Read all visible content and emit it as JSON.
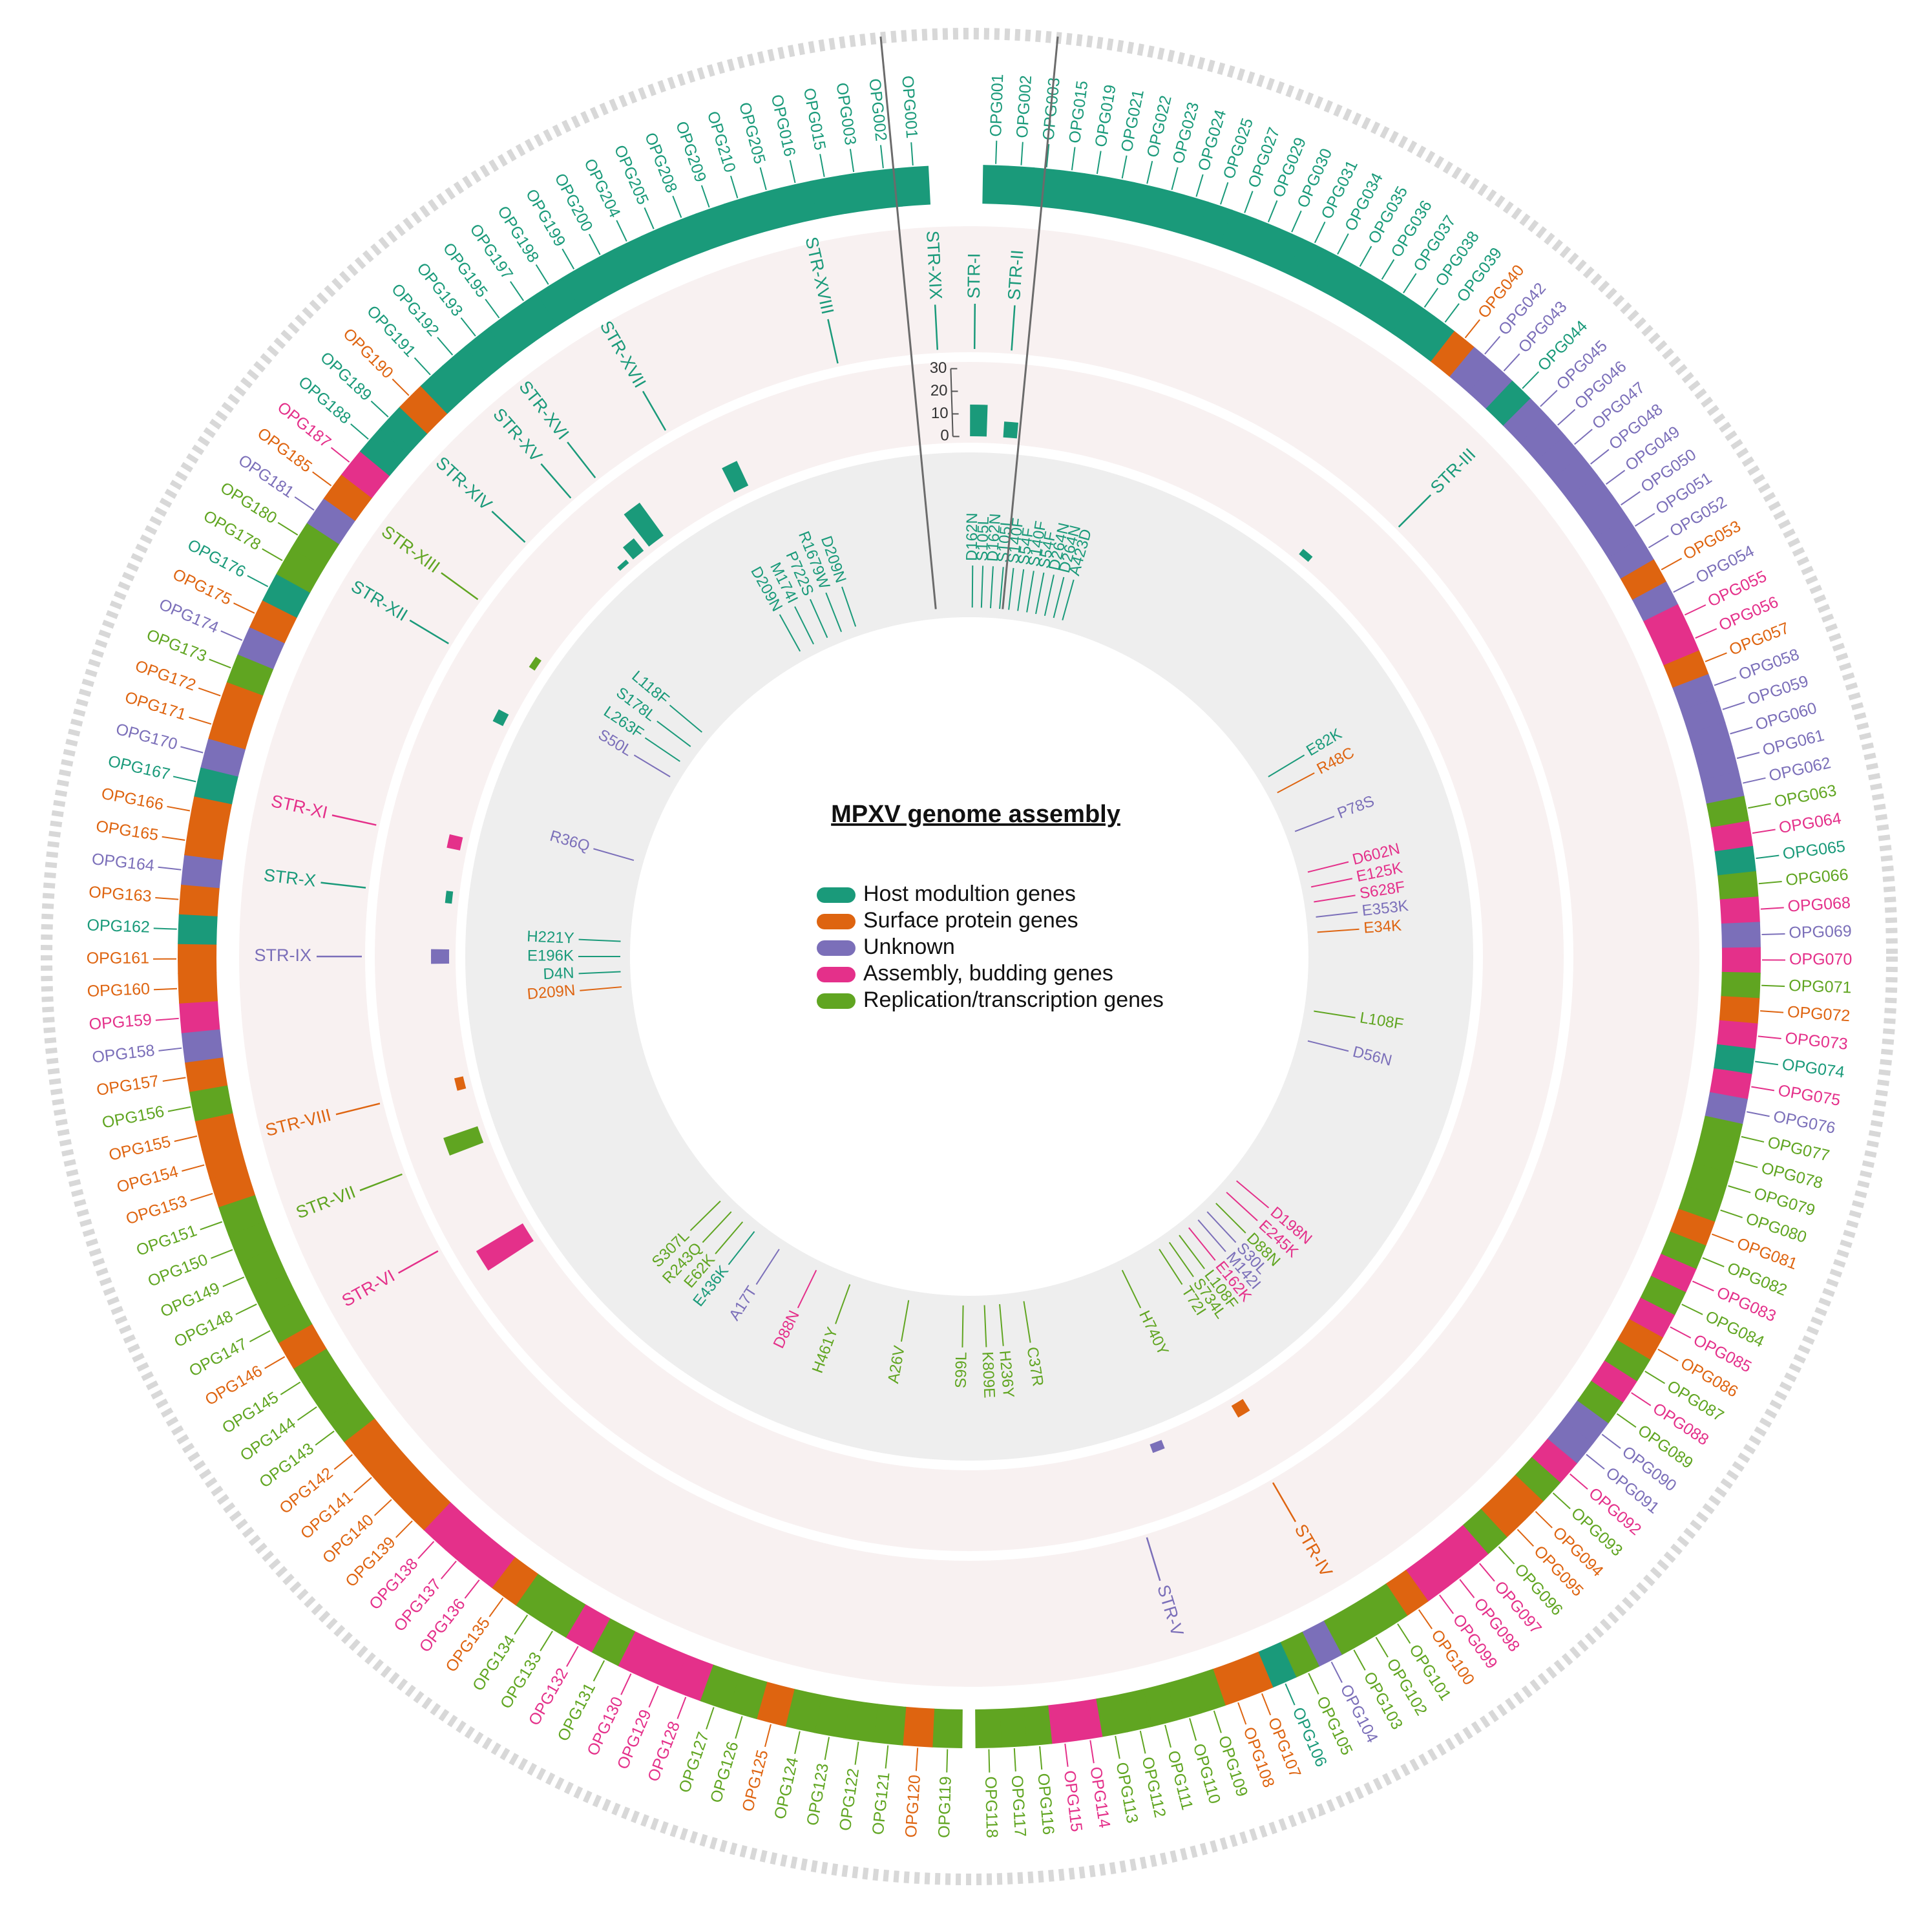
{
  "title": "MPXV genome assembly",
  "palette": {
    "host": "#1a9a7a",
    "surface": "#de6410",
    "unknown": "#7b6fb9",
    "assembly": "#e4308a",
    "replication": "#60a521",
    "ring_grey": "#eeeeee",
    "ring_pink": "#f8f1f1",
    "outer_ticks": "#d8d8d8",
    "divider": "#6b6b6b"
  },
  "legend": [
    {
      "key": "host",
      "label": "Host modultion genes"
    },
    {
      "key": "surface",
      "label": "Surface protein genes"
    },
    {
      "key": "unknown",
      "label": "Unknown"
    },
    {
      "key": "assembly",
      "label": "Assembly, budding genes"
    },
    {
      "key": "replication",
      "label": "Replication/transcription genes"
    }
  ],
  "bar_axis": {
    "ticks": [
      0,
      10,
      20,
      30
    ],
    "max": 30
  },
  "strs": [
    {
      "label": "STR-I",
      "pos": 0.5,
      "cat": "host"
    },
    {
      "label": "STR-II",
      "pos": 4.0,
      "cat": "host"
    },
    {
      "label": "STR-III",
      "pos": 45.0,
      "cat": "host"
    },
    {
      "label": "STR-IV",
      "pos": 150.0,
      "cat": "surface"
    },
    {
      "label": "STR-V",
      "pos": 163.0,
      "cat": "unknown"
    },
    {
      "label": "STR-VI",
      "pos": 241.0,
      "cat": "assembly"
    },
    {
      "label": "STR-VII",
      "pos": 249.0,
      "cat": "replication"
    },
    {
      "label": "STR-VIII",
      "pos": 256.0,
      "cat": "surface"
    },
    {
      "label": "STR-IX",
      "pos": 270.0,
      "cat": "unknown"
    },
    {
      "label": "STR-X",
      "pos": 276.5,
      "cat": "host"
    },
    {
      "label": "STR-XI",
      "pos": 282.5,
      "cat": "assembly"
    },
    {
      "label": "STR-XII",
      "pos": 301.0,
      "cat": "host"
    },
    {
      "label": "STR-XIII",
      "pos": 306.0,
      "cat": "replication"
    },
    {
      "label": "STR-XIV",
      "pos": 313.0,
      "cat": "host"
    },
    {
      "label": "STR-XV",
      "pos": 319.0,
      "cat": "host"
    },
    {
      "label": "STR-XVI",
      "pos": 322.0,
      "cat": "host"
    },
    {
      "label": "STR-XVII",
      "pos": 330.0,
      "cat": "host"
    },
    {
      "label": "STR-XVIII",
      "pos": 347.5,
      "cat": "host"
    },
    {
      "label": "STR-XIX",
      "pos": 357.0,
      "cat": "host"
    }
  ],
  "bars": [
    {
      "pos": 1.0,
      "value": 14,
      "cat": "host"
    },
    {
      "pos": 4.5,
      "value": 7,
      "cat": "host"
    },
    {
      "pos": 40.0,
      "value": 3,
      "cat": "host"
    },
    {
      "pos": 149.0,
      "value": 6,
      "cat": "surface"
    },
    {
      "pos": 159.0,
      "value": 4,
      "cat": "unknown"
    },
    {
      "pos": 238.0,
      "value": 24,
      "cat": "assembly"
    },
    {
      "pos": 250.0,
      "value": 16,
      "cat": "replication"
    },
    {
      "pos": 256.0,
      "value": 4,
      "cat": "surface"
    },
    {
      "pos": 270.0,
      "value": 8,
      "cat": "unknown"
    },
    {
      "pos": 276.5,
      "value": 3,
      "cat": "host"
    },
    {
      "pos": 282.5,
      "value": 6,
      "cat": "assembly"
    },
    {
      "pos": 297.0,
      "value": 5,
      "cat": "host"
    },
    {
      "pos": 304.0,
      "value": 3,
      "cat": "replication"
    },
    {
      "pos": 318.5,
      "value": 2,
      "cat": "host"
    },
    {
      "pos": 320.5,
      "value": 7,
      "cat": "host"
    },
    {
      "pos": 323.0,
      "value": 18,
      "cat": "host"
    },
    {
      "pos": 334.0,
      "value": 12,
      "cat": "host"
    }
  ],
  "mutations": [
    {
      "label": "D162N",
      "pos": 0.5,
      "cat": "host"
    },
    {
      "label": "S105L",
      "pos": 2.0,
      "cat": "host"
    },
    {
      "label": "D162N",
      "pos": 3.5,
      "cat": "host"
    },
    {
      "label": "S105L",
      "pos": 5.0,
      "cat": "host"
    },
    {
      "label": "S140F",
      "pos": 6.5,
      "cat": "host"
    },
    {
      "label": "S54F",
      "pos": 8.0,
      "cat": "host"
    },
    {
      "label": "S140F",
      "pos": 9.5,
      "cat": "host"
    },
    {
      "label": "S54F",
      "pos": 11.0,
      "cat": "host"
    },
    {
      "label": "D264N",
      "pos": 12.5,
      "cat": "host"
    },
    {
      "label": "D264N",
      "pos": 14.0,
      "cat": "host"
    },
    {
      "label": "A423D",
      "pos": 15.5,
      "cat": "host"
    },
    {
      "label": "E82K",
      "pos": 59.0,
      "cat": "host"
    },
    {
      "label": "R48C",
      "pos": 62.0,
      "cat": "surface"
    },
    {
      "label": "P78S",
      "pos": 69.0,
      "cat": "unknown"
    },
    {
      "label": "D602N",
      "pos": 76.0,
      "cat": "assembly"
    },
    {
      "label": "E125K",
      "pos": 78.5,
      "cat": "assembly"
    },
    {
      "label": "S628F",
      "pos": 81.0,
      "cat": "assembly"
    },
    {
      "label": "E353K",
      "pos": 83.5,
      "cat": "unknown"
    },
    {
      "label": "E34K",
      "pos": 86.0,
      "cat": "surface"
    },
    {
      "label": "L108F",
      "pos": 99.0,
      "cat": "replication"
    },
    {
      "label": "D56N",
      "pos": 104.0,
      "cat": "unknown"
    },
    {
      "label": "D198N",
      "pos": 130.0,
      "cat": "assembly"
    },
    {
      "label": "E245K",
      "pos": 132.5,
      "cat": "assembly"
    },
    {
      "label": "D88N",
      "pos": 135.0,
      "cat": "replication"
    },
    {
      "label": "S30L",
      "pos": 137.0,
      "cat": "unknown"
    },
    {
      "label": "M142I",
      "pos": 139.0,
      "cat": "unknown"
    },
    {
      "label": "E162K",
      "pos": 141.0,
      "cat": "assembly"
    },
    {
      "label": "L108F",
      "pos": 143.0,
      "cat": "replication"
    },
    {
      "label": "S734L",
      "pos": 145.0,
      "cat": "replication"
    },
    {
      "label": "T72I",
      "pos": 147.0,
      "cat": "replication"
    },
    {
      "label": "H740Y",
      "pos": 154.0,
      "cat": "replication"
    },
    {
      "label": "C37R",
      "pos": 171.0,
      "cat": "replication"
    },
    {
      "label": "H236Y",
      "pos": 175.0,
      "cat": "replication"
    },
    {
      "label": "K809E",
      "pos": 177.5,
      "cat": "replication"
    },
    {
      "label": "S99L",
      "pos": 181.0,
      "cat": "replication"
    },
    {
      "label": "A26V",
      "pos": 190.0,
      "cat": "replication"
    },
    {
      "label": "H461Y",
      "pos": 200.0,
      "cat": "replication"
    },
    {
      "label": "D88N",
      "pos": 206.0,
      "cat": "assembly"
    },
    {
      "label": "A17T",
      "pos": 213.0,
      "cat": "unknown"
    },
    {
      "label": "E436K",
      "pos": 218.0,
      "cat": "host"
    },
    {
      "label": "E62K",
      "pos": 220.5,
      "cat": "replication"
    },
    {
      "label": "R243Q",
      "pos": 223.0,
      "cat": "replication"
    },
    {
      "label": "S307L",
      "pos": 225.5,
      "cat": "replication"
    },
    {
      "label": "D209N",
      "pos": 265.0,
      "cat": "surface"
    },
    {
      "label": "D4N",
      "pos": 267.5,
      "cat": "host"
    },
    {
      "label": "E196K",
      "pos": 270.0,
      "cat": "host"
    },
    {
      "label": "H221Y",
      "pos": 272.5,
      "cat": "host"
    },
    {
      "label": "R36Q",
      "pos": 286.0,
      "cat": "unknown"
    },
    {
      "label": "S50L",
      "pos": 301.0,
      "cat": "unknown"
    },
    {
      "label": "L263F",
      "pos": 304.0,
      "cat": "host"
    },
    {
      "label": "S178L",
      "pos": 307.0,
      "cat": "host"
    },
    {
      "label": "L118F",
      "pos": 310.0,
      "cat": "host"
    },
    {
      "label": "D209N",
      "pos": 331.0,
      "cat": "host"
    },
    {
      "label": "M174I",
      "pos": 333.5,
      "cat": "host"
    },
    {
      "label": "P722S",
      "pos": 336.0,
      "cat": "host"
    },
    {
      "label": "R1679W",
      "pos": 338.5,
      "cat": "host"
    },
    {
      "label": "D209N",
      "pos": 341.0,
      "cat": "host"
    }
  ],
  "genes_right": [
    {
      "label": "OPG001",
      "cat": "host"
    },
    {
      "label": "OPG002",
      "cat": "host"
    },
    {
      "label": "OPG003",
      "cat": "host"
    },
    {
      "label": "OPG015",
      "cat": "host"
    },
    {
      "label": "OPG019",
      "cat": "host"
    },
    {
      "label": "OPG021",
      "cat": "host"
    },
    {
      "label": "OPG022",
      "cat": "host"
    },
    {
      "label": "OPG023",
      "cat": "host"
    },
    {
      "label": "OPG024",
      "cat": "host"
    },
    {
      "label": "OPG025",
      "cat": "host"
    },
    {
      "label": "OPG027",
      "cat": "host"
    },
    {
      "label": "OPG029",
      "cat": "host"
    },
    {
      "label": "OPG030",
      "cat": "host"
    },
    {
      "label": "OPG031",
      "cat": "host"
    },
    {
      "label": "OPG034",
      "cat": "host"
    },
    {
      "label": "OPG035",
      "cat": "host"
    },
    {
      "label": "OPG036",
      "cat": "host"
    },
    {
      "label": "OPG037",
      "cat": "host"
    },
    {
      "label": "OPG038",
      "cat": "host"
    },
    {
      "label": "OPG039",
      "cat": "host"
    },
    {
      "label": "OPG040",
      "cat": "surface"
    },
    {
      "label": "OPG042",
      "cat": "unknown"
    },
    {
      "label": "OPG043",
      "cat": "unknown"
    },
    {
      "label": "OPG044",
      "cat": "host"
    },
    {
      "label": "OPG045",
      "cat": "unknown"
    },
    {
      "label": "OPG046",
      "cat": "unknown"
    },
    {
      "label": "OPG047",
      "cat": "unknown"
    },
    {
      "label": "OPG048",
      "cat": "unknown"
    },
    {
      "label": "OPG049",
      "cat": "unknown"
    },
    {
      "label": "OPG050",
      "cat": "unknown"
    },
    {
      "label": "OPG051",
      "cat": "unknown"
    },
    {
      "label": "OPG052",
      "cat": "unknown"
    },
    {
      "label": "OPG053",
      "cat": "surface"
    },
    {
      "label": "OPG054",
      "cat": "unknown"
    },
    {
      "label": "OPG055",
      "cat": "assembly"
    },
    {
      "label": "OPG056",
      "cat": "assembly"
    },
    {
      "label": "OPG057",
      "cat": "surface"
    },
    {
      "label": "OPG058",
      "cat": "unknown"
    },
    {
      "label": "OPG059",
      "cat": "unknown"
    },
    {
      "label": "OPG060",
      "cat": "unknown"
    },
    {
      "label": "OPG061",
      "cat": "unknown"
    },
    {
      "label": "OPG062",
      "cat": "unknown"
    },
    {
      "label": "OPG063",
      "cat": "replication"
    },
    {
      "label": "OPG064",
      "cat": "assembly"
    },
    {
      "label": "OPG065",
      "cat": "host"
    },
    {
      "label": "OPG066",
      "cat": "replication"
    },
    {
      "label": "OPG068",
      "cat": "assembly"
    },
    {
      "label": "OPG069",
      "cat": "unknown"
    },
    {
      "label": "OPG070",
      "cat": "assembly"
    },
    {
      "label": "OPG071",
      "cat": "replication"
    },
    {
      "label": "OPG072",
      "cat": "surface"
    },
    {
      "label": "OPG073",
      "cat": "assembly"
    },
    {
      "label": "OPG074",
      "cat": "host"
    },
    {
      "label": "OPG075",
      "cat": "assembly"
    },
    {
      "label": "OPG076",
      "cat": "unknown"
    },
    {
      "label": "OPG077",
      "cat": "replication"
    },
    {
      "label": "OPG078",
      "cat": "replication"
    },
    {
      "label": "OPG079",
      "cat": "replication"
    },
    {
      "label": "OPG080",
      "cat": "replication"
    },
    {
      "label": "OPG081",
      "cat": "surface"
    },
    {
      "label": "OPG082",
      "cat": "replication"
    },
    {
      "label": "OPG083",
      "cat": "assembly"
    },
    {
      "label": "OPG084",
      "cat": "replication"
    },
    {
      "label": "OPG085",
      "cat": "assembly"
    },
    {
      "label": "OPG086",
      "cat": "surface"
    },
    {
      "label": "OPG087",
      "cat": "replication"
    },
    {
      "label": "OPG088",
      "cat": "assembly"
    },
    {
      "label": "OPG089",
      "cat": "replication"
    },
    {
      "label": "OPG090",
      "cat": "unknown"
    },
    {
      "label": "OPG091",
      "cat": "unknown"
    },
    {
      "label": "OPG092",
      "cat": "assembly"
    },
    {
      "label": "OPG093",
      "cat": "replication"
    },
    {
      "label": "OPG094",
      "cat": "surface"
    },
    {
      "label": "OPG095",
      "cat": "surface"
    },
    {
      "label": "OPG096",
      "cat": "replication"
    },
    {
      "label": "OPG097",
      "cat": "assembly"
    },
    {
      "label": "OPG098",
      "cat": "assembly"
    },
    {
      "label": "OPG099",
      "cat": "assembly"
    },
    {
      "label": "OPG100",
      "cat": "surface"
    },
    {
      "label": "OPG101",
      "cat": "replication"
    },
    {
      "label": "OPG102",
      "cat": "replication"
    },
    {
      "label": "OPG103",
      "cat": "replication"
    },
    {
      "label": "OPG104",
      "cat": "unknown"
    },
    {
      "label": "OPG105",
      "cat": "replication"
    },
    {
      "label": "OPG106",
      "cat": "host"
    },
    {
      "label": "OPG107",
      "cat": "surface"
    },
    {
      "label": "OPG108",
      "cat": "surface"
    },
    {
      "label": "OPG109",
      "cat": "replication"
    },
    {
      "label": "OPG110",
      "cat": "replication"
    },
    {
      "label": "OPG111",
      "cat": "replication"
    },
    {
      "label": "OPG112",
      "cat": "replication"
    },
    {
      "label": "OPG113",
      "cat": "replication"
    },
    {
      "label": "OPG114",
      "cat": "assembly"
    },
    {
      "label": "OPG115",
      "cat": "assembly"
    },
    {
      "label": "OPG116",
      "cat": "replication"
    },
    {
      "label": "OPG117",
      "cat": "replication"
    },
    {
      "label": "OPG118",
      "cat": "replication"
    }
  ],
  "genes_left": [
    {
      "label": "OPG119",
      "cat": "replication"
    },
    {
      "label": "OPG120",
      "cat": "surface"
    },
    {
      "label": "OPG121",
      "cat": "replication"
    },
    {
      "label": "OPG122",
      "cat": "replication"
    },
    {
      "label": "OPG123",
      "cat": "replication"
    },
    {
      "label": "OPG124",
      "cat": "replication"
    },
    {
      "label": "OPG125",
      "cat": "surface"
    },
    {
      "label": "OPG126",
      "cat": "replication"
    },
    {
      "label": "OPG127",
      "cat": "replication"
    },
    {
      "label": "OPG128",
      "cat": "assembly"
    },
    {
      "label": "OPG129",
      "cat": "assembly"
    },
    {
      "label": "OPG130",
      "cat": "assembly"
    },
    {
      "label": "OPG131",
      "cat": "replication"
    },
    {
      "label": "OPG132",
      "cat": "assembly"
    },
    {
      "label": "OPG133",
      "cat": "replication"
    },
    {
      "label": "OPG134",
      "cat": "replication"
    },
    {
      "label": "OPG135",
      "cat": "surface"
    },
    {
      "label": "OPG136",
      "cat": "assembly"
    },
    {
      "label": "OPG137",
      "cat": "assembly"
    },
    {
      "label": "OPG138",
      "cat": "assembly"
    },
    {
      "label": "OPG139",
      "cat": "surface"
    },
    {
      "label": "OPG140",
      "cat": "surface"
    },
    {
      "label": "OPG141",
      "cat": "surface"
    },
    {
      "label": "OPG142",
      "cat": "surface"
    },
    {
      "label": "OPG143",
      "cat": "replication"
    },
    {
      "label": "OPG144",
      "cat": "replication"
    },
    {
      "label": "OPG145",
      "cat": "replication"
    },
    {
      "label": "OPG146",
      "cat": "surface"
    },
    {
      "label": "OPG147",
      "cat": "replication"
    },
    {
      "label": "OPG148",
      "cat": "replication"
    },
    {
      "label": "OPG149",
      "cat": "replication"
    },
    {
      "label": "OPG150",
      "cat": "replication"
    },
    {
      "label": "OPG151",
      "cat": "replication"
    },
    {
      "label": "OPG153",
      "cat": "surface"
    },
    {
      "label": "OPG154",
      "cat": "surface"
    },
    {
      "label": "OPG155",
      "cat": "surface"
    },
    {
      "label": "OPG156",
      "cat": "replication"
    },
    {
      "label": "OPG157",
      "cat": "surface"
    },
    {
      "label": "OPG158",
      "cat": "unknown"
    },
    {
      "label": "OPG159",
      "cat": "assembly"
    },
    {
      "label": "OPG160",
      "cat": "surface"
    },
    {
      "label": "OPG161",
      "cat": "surface"
    },
    {
      "label": "OPG162",
      "cat": "host"
    },
    {
      "label": "OPG163",
      "cat": "surface"
    },
    {
      "label": "OPG164",
      "cat": "unknown"
    },
    {
      "label": "OPG165",
      "cat": "surface"
    },
    {
      "label": "OPG166",
      "cat": "surface"
    },
    {
      "label": "OPG167",
      "cat": "host"
    },
    {
      "label": "OPG170",
      "cat": "unknown"
    },
    {
      "label": "OPG171",
      "cat": "surface"
    },
    {
      "label": "OPG172",
      "cat": "surface"
    },
    {
      "label": "OPG173",
      "cat": "replication"
    },
    {
      "label": "OPG174",
      "cat": "unknown"
    },
    {
      "label": "OPG175",
      "cat": "surface"
    },
    {
      "label": "OPG176",
      "cat": "host"
    },
    {
      "label": "OPG178",
      "cat": "replication"
    },
    {
      "label": "OPG180",
      "cat": "replication"
    },
    {
      "label": "OPG181",
      "cat": "unknown"
    },
    {
      "label": "OPG185",
      "cat": "surface"
    },
    {
      "label": "OPG187",
      "cat": "assembly"
    },
    {
      "label": "OPG188",
      "cat": "host"
    },
    {
      "label": "OPG189",
      "cat": "host"
    },
    {
      "label": "OPG190",
      "cat": "surface"
    },
    {
      "label": "OPG191",
      "cat": "host"
    },
    {
      "label": "OPG192",
      "cat": "host"
    },
    {
      "label": "OPG193",
      "cat": "host"
    },
    {
      "label": "OPG195",
      "cat": "host"
    },
    {
      "label": "OPG197",
      "cat": "host"
    },
    {
      "label": "OPG198",
      "cat": "host"
    },
    {
      "label": "OPG199",
      "cat": "host"
    },
    {
      "label": "OPG200",
      "cat": "host"
    },
    {
      "label": "OPG204",
      "cat": "host"
    },
    {
      "label": "OPG205",
      "cat": "host"
    },
    {
      "label": "OPG208",
      "cat": "host"
    },
    {
      "label": "OPG209",
      "cat": "host"
    },
    {
      "label": "OPG210",
      "cat": "host"
    },
    {
      "label": "OPG205",
      "cat": "host"
    },
    {
      "label": "OPG016",
      "cat": "host"
    },
    {
      "label": "OPG015",
      "cat": "host"
    },
    {
      "label": "OPG003",
      "cat": "host"
    },
    {
      "label": "OPG002",
      "cat": "host"
    },
    {
      "label": "OPG001",
      "cat": "host"
    }
  ]
}
